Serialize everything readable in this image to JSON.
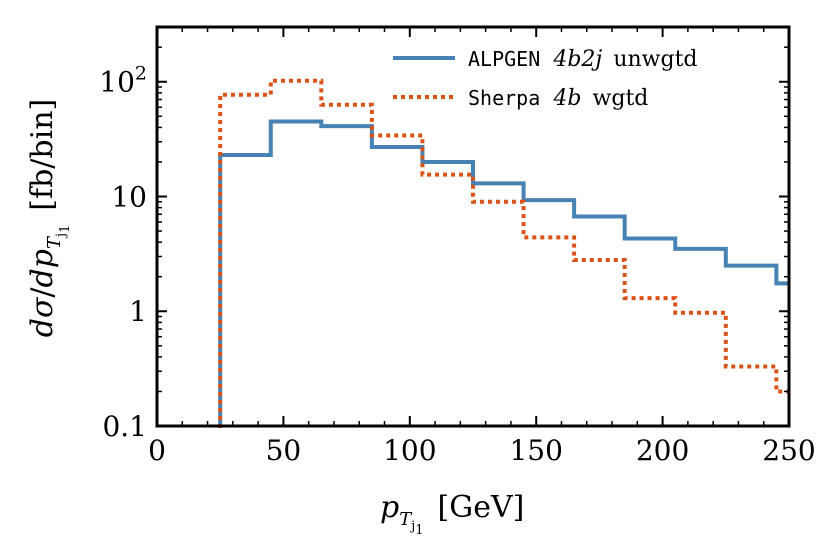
{
  "chart_data": {
    "type": "line",
    "title": "",
    "xlabel": "p_{T_{j_1}} [GeV]",
    "ylabel": "dσ/dp_{T_{j_1}} [fb/bin]",
    "xlim": [
      0,
      250
    ],
    "ylim": [
      0.1,
      300
    ],
    "yscale": "log",
    "x_ticks": [
      0,
      50,
      100,
      150,
      200,
      250
    ],
    "x_tick_labels": [
      "0",
      "50",
      "100",
      "150",
      "200",
      "250"
    ],
    "y_ticks": [
      0.1,
      1,
      10,
      100
    ],
    "y_tick_labels": [
      "0.1",
      "1",
      "10",
      "10²"
    ],
    "grid": false,
    "legend_position": "top-right",
    "bin_edges": [
      25,
      45,
      65,
      85,
      105,
      125,
      145,
      165,
      185,
      205,
      225,
      245,
      250
    ],
    "series": [
      {
        "name": "ALPGEN 4b2j unwgtd",
        "legend_mono": "ALPGEN",
        "legend_math": "4b2j",
        "legend_suffix": "unwgtd",
        "style": "solid",
        "color": "#4682b4",
        "values": [
          23,
          45,
          41,
          27,
          20,
          13,
          9.3,
          6.7,
          4.3,
          3.5,
          2.5,
          1.75
        ]
      },
      {
        "name": "Sherpa 4b wgtd",
        "legend_mono": "Sherpa",
        "legend_math": "4b",
        "legend_suffix": "wgtd",
        "style": "dotted",
        "color": "#d95319",
        "values": [
          77,
          102,
          63,
          34,
          15.5,
          9,
          4.4,
          2.8,
          1.3,
          0.97,
          0.33,
          0.2
        ]
      }
    ]
  }
}
